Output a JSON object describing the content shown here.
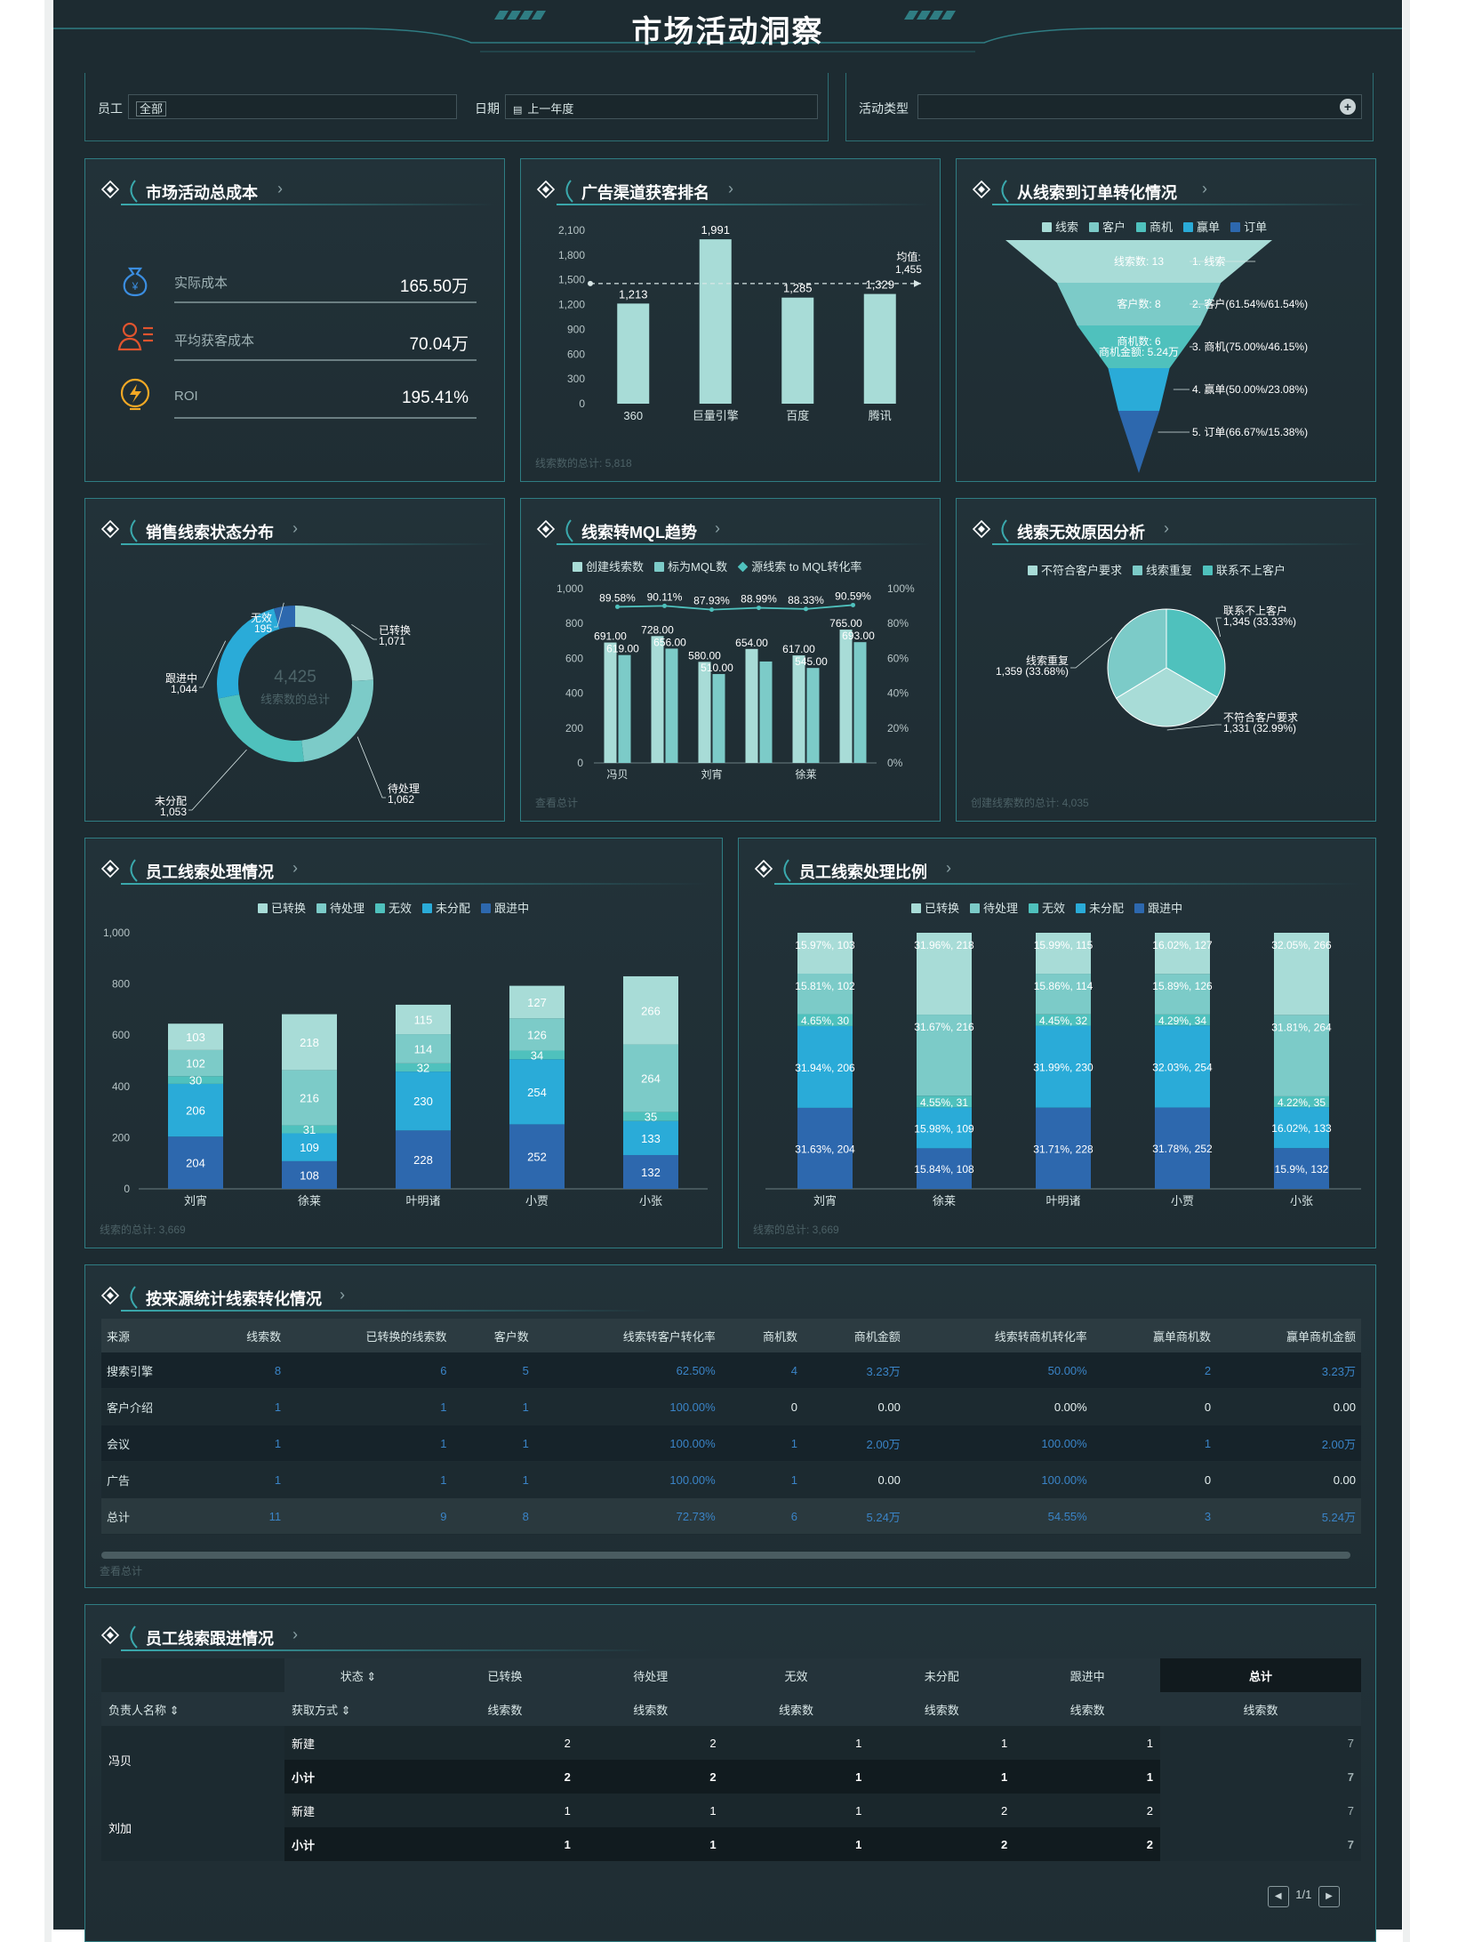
{
  "title": "市场活动洞察",
  "filters": {
    "employee_label": "员工",
    "employee_value": "全部",
    "date_label": "日期",
    "date_value": "上一年度",
    "activity_label": "活动类型"
  },
  "colors": {
    "c1": "#a8dcd7",
    "c2": "#7ccbc8",
    "c3": "#4fc1bd",
    "c4": "#2aabd8",
    "c5": "#2d68ae",
    "line": "#4fc1bd"
  },
  "kpi": {
    "title": "市场活动总成本",
    "items": [
      {
        "label": "实际成本",
        "value": "165.50万",
        "icon": "money-bag-icon"
      },
      {
        "label": "平均获客成本",
        "value": "70.04万",
        "icon": "user-list-icon"
      },
      {
        "label": "ROI",
        "value": "195.41%",
        "icon": "lightning-icon"
      }
    ]
  },
  "ad_panel": {
    "title": "广告渠道获客排名",
    "footer": "线索数的总计: 5,818",
    "avg_label": "均值:",
    "avg_value": "1,455"
  },
  "funnel_panel": {
    "title": "从线索到订单转化情况"
  },
  "donut_panel": {
    "title": "销售线索状态分布",
    "footer": ""
  },
  "mql_panel": {
    "title": "线索转MQL趋势",
    "footer": "查看总计"
  },
  "invalid_panel": {
    "title": "线索无效原因分析",
    "footer": "创建线索数的总计: 4,035"
  },
  "emp_panel": {
    "title": "员工线索处理情况",
    "footer": "线索的总计: 3,669"
  },
  "ratio_panel": {
    "title": "员工线索处理比例",
    "footer": "线索的总计: 3,669"
  },
  "source_table": {
    "title": "按来源统计线索转化情况",
    "footer": "查看总计",
    "headers": [
      "来源",
      "线索数",
      "已转换的线索数",
      "客户数",
      "线索转客户转化率",
      "商机数",
      "商机金额",
      "线索转商机转化率",
      "赢单商机数",
      "赢单商机金额"
    ],
    "rows": [
      [
        "搜索引擎",
        "8",
        "6",
        "5",
        "62.50%",
        "4",
        "3.23万",
        "50.00%",
        "2",
        "3.23万"
      ],
      [
        "客户介绍",
        "1",
        "1",
        "1",
        "100.00%",
        "0",
        "0.00",
        "0.00%",
        "0",
        "0.00"
      ],
      [
        "会议",
        "1",
        "1",
        "1",
        "100.00%",
        "1",
        "2.00万",
        "100.00%",
        "1",
        "2.00万"
      ],
      [
        "广告",
        "1",
        "1",
        "1",
        "100.00%",
        "1",
        "0.00",
        "100.00%",
        "0",
        "0.00"
      ]
    ],
    "total": [
      "总计",
      "11",
      "9",
      "8",
      "72.73%",
      "6",
      "5.24万",
      "54.55%",
      "3",
      "5.24万"
    ]
  },
  "follow_table": {
    "title": "员工线索跟进情况",
    "status_label": "状态",
    "owner_label": "负责人名称",
    "method_label": "获取方式",
    "status_cols": [
      "已转换",
      "待处理",
      "无效",
      "未分配",
      "跟进中",
      "总计"
    ],
    "metric": "线索数",
    "groups": [
      {
        "name": "冯贝",
        "rows": [
          {
            "label": "新建",
            "values": [
              "2",
              "2",
              "1",
              "1",
              "1",
              "7"
            ]
          },
          {
            "label": "小计",
            "values": [
              "2",
              "2",
              "1",
              "1",
              "1",
              "7"
            ]
          }
        ]
      },
      {
        "name": "刘加",
        "rows": [
          {
            "label": "新建",
            "values": [
              "1",
              "1",
              "1",
              "2",
              "2",
              "7"
            ]
          },
          {
            "label": "小计",
            "values": [
              "1",
              "1",
              "1",
              "2",
              "2",
              "7"
            ]
          }
        ]
      }
    ],
    "pager": "1/1"
  },
  "chart_data": [
    {
      "type": "bar",
      "title": "广告渠道获客排名",
      "categories": [
        "360",
        "巨量引擎",
        "百度",
        "腾讯"
      ],
      "values": [
        1213,
        1991,
        1285,
        1329
      ],
      "value_labels": [
        "1,213",
        "1,991",
        "1,285",
        "1,329"
      ],
      "ylim": [
        0,
        2100
      ],
      "yticks": [
        "0",
        "300",
        "600",
        "900",
        "1,200",
        "1,500",
        "1,800",
        "2,100"
      ],
      "average": 1455
    },
    {
      "type": "funnel",
      "title": "从线索到订单转化情况",
      "legend": [
        "线索",
        "客户",
        "商机",
        "赢单",
        "订单"
      ],
      "stages": [
        {
          "name": "1. 线索",
          "inner": "线索数: 13",
          "value": 13
        },
        {
          "name": "2. 客户(61.54%/61.54%)",
          "inner": "客户数: 8",
          "value": 8
        },
        {
          "name": "3. 商机(75.00%/46.15%)",
          "inner": "商机数: 6",
          "inner2": "商机金额: 5.24万",
          "value": 6
        },
        {
          "name": "4. 赢单(50.00%/23.08%)",
          "inner": "",
          "value": 3
        },
        {
          "name": "5. 订单(66.67%/15.38%)",
          "inner": "",
          "value": 2
        }
      ]
    },
    {
      "type": "pie",
      "title": "销售线索状态分布",
      "center_value": "4,425",
      "center_label": "线索数的总计",
      "slices": [
        {
          "name": "已转换",
          "value": 1071,
          "label": "1,071"
        },
        {
          "name": "待处理",
          "value": 1062,
          "label": "1,062"
        },
        {
          "name": "未分配",
          "value": 1053,
          "label": "1,053"
        },
        {
          "name": "跟进中",
          "value": 1044,
          "label": "1,044"
        },
        {
          "name": "无效",
          "value": 195,
          "label": "195"
        }
      ]
    },
    {
      "type": "bar",
      "title": "线索转MQL趋势",
      "legend": [
        "创建线索数",
        "标为MQL数",
        "源线索 to MQL转化率"
      ],
      "categories": [
        "冯贝",
        "",
        "刘宵",
        "",
        "徐莱",
        ""
      ],
      "x_tick_labels": [
        "冯贝",
        "刘宵",
        "徐莱"
      ],
      "series": [
        {
          "name": "创建线索数",
          "values": [
            691,
            728,
            580,
            654,
            617,
            765
          ],
          "labels": [
            "691.00",
            "728.00",
            "580.00",
            "654.00",
            "617.00",
            "765.00"
          ]
        },
        {
          "name": "标为MQL数",
          "values": [
            619,
            656,
            510,
            582,
            545,
            693
          ],
          "labels": [
            "619.00",
            "656.00",
            "510.00",
            "",
            "545.00",
            "693.00"
          ]
        },
        {
          "name": "源线索 to MQL转化率",
          "values": [
            89.58,
            90.11,
            87.93,
            88.99,
            88.33,
            90.59
          ],
          "labels": [
            "89.58%",
            "90.11%",
            "87.93%",
            "88.99%",
            "88.33%",
            "90.59%"
          ]
        }
      ],
      "ylim": [
        0,
        1000
      ],
      "yticks": [
        "0",
        "200",
        "400",
        "600",
        "800",
        "1,000"
      ],
      "y2ticks": [
        "0%",
        "20%",
        "40%",
        "60%",
        "80%",
        "100%"
      ]
    },
    {
      "type": "pie",
      "title": "线索无效原因分析",
      "legend": [
        "不符合客户要求",
        "线索重复",
        "联系不上客户"
      ],
      "slices": [
        {
          "name": "联系不上客户",
          "value": 1345,
          "label": "1,345 (33.33%)"
        },
        {
          "name": "不符合客户要求",
          "value": 1331,
          "label": "1,331 (32.99%)"
        },
        {
          "name": "线索重复",
          "value": 1359,
          "label": "1,359 (33.68%)"
        }
      ]
    },
    {
      "type": "bar",
      "title": "员工线索处理情况",
      "stacked": true,
      "categories": [
        "刘宵",
        "徐莱",
        "叶明诸",
        "小贾",
        "小张"
      ],
      "legend": [
        "已转换",
        "待处理",
        "无效",
        "未分配",
        "跟进中"
      ],
      "series": [
        {
          "name": "跟进中",
          "values": [
            204,
            108,
            228,
            252,
            132
          ]
        },
        {
          "name": "未分配",
          "values": [
            206,
            109,
            230,
            254,
            133
          ]
        },
        {
          "name": "无效",
          "values": [
            30,
            31,
            32,
            34,
            35
          ]
        },
        {
          "name": "待处理",
          "values": [
            102,
            216,
            114,
            126,
            264
          ]
        },
        {
          "name": "已转换",
          "values": [
            103,
            218,
            115,
            127,
            266
          ]
        }
      ],
      "ylim": [
        0,
        1000
      ],
      "yticks": [
        "0",
        "200",
        "400",
        "600",
        "800",
        "1,000"
      ]
    },
    {
      "type": "bar",
      "title": "员工线索处理比例",
      "stacked": true,
      "normalized": true,
      "categories": [
        "刘宵",
        "徐莱",
        "叶明诸",
        "小贾",
        "小张"
      ],
      "legend": [
        "已转换",
        "待处理",
        "无效",
        "未分配",
        "跟进中"
      ],
      "series": [
        {
          "name": "跟进中",
          "values": [
            31.63,
            15.84,
            31.71,
            31.78,
            15.9
          ],
          "labels": [
            "31.63%, 204",
            "15.84%, 108",
            "31.71%, 228",
            "31.78%, 252",
            "15.9%, 132"
          ]
        },
        {
          "name": "未分配",
          "values": [
            31.94,
            15.98,
            31.99,
            32.03,
            16.02
          ],
          "labels": [
            "31.94%, 206",
            "15.98%, 109",
            "31.99%, 230",
            "32.03%, 254",
            "16.02%, 133"
          ]
        },
        {
          "name": "无效",
          "values": [
            4.65,
            4.55,
            4.45,
            4.29,
            4.22
          ],
          "labels": [
            "4.65%, 30",
            "4.55%, 31",
            "4.45%, 32",
            "4.29%, 34",
            "4.22%, 35"
          ]
        },
        {
          "name": "待处理",
          "values": [
            15.81,
            31.67,
            15.86,
            15.89,
            31.81
          ],
          "labels": [
            "15.81%, 102",
            "31.67%, 216",
            "15.86%, 114",
            "15.89%, 126",
            "31.81%, 264"
          ]
        },
        {
          "name": "已转换",
          "values": [
            15.97,
            31.96,
            15.99,
            16.02,
            32.05
          ],
          "labels": [
            "15.97%, 103",
            "31.96%, 218",
            "15.99%, 115",
            "16.02%, 127",
            "32.05%, 266"
          ]
        }
      ]
    }
  ]
}
